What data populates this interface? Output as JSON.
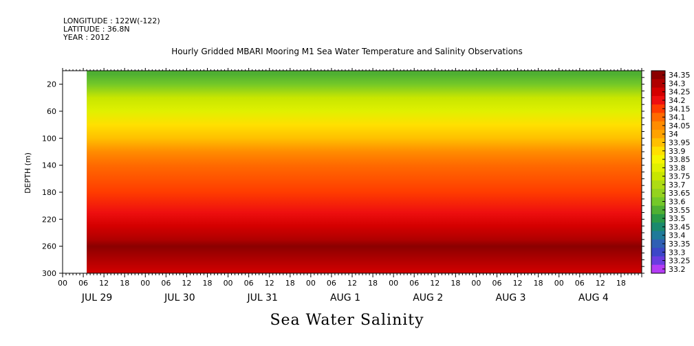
{
  "header": {
    "longitude": "LONGITUDE : 122W(-122)",
    "latitude": "LATITUDE : 36.8N",
    "year": "YEAR : 2012"
  },
  "chart_data": {
    "type": "heatmap",
    "title": "Hourly Gridded MBARI Mooring M1 Sea Water Temperature and Salinity Observations",
    "subtitle": "Sea Water Salinity",
    "ylabel": "DEPTH (m)",
    "xlabel": "",
    "y_axis": {
      "range": [
        0,
        300
      ],
      "inverted": true,
      "ticks": [
        20,
        60,
        100,
        140,
        180,
        220,
        260,
        300
      ],
      "tick_labels": [
        "20",
        "60",
        "100",
        "140",
        "180",
        "220",
        "260",
        "300"
      ]
    },
    "x_axis": {
      "range_hours": [
        0,
        168
      ],
      "hour_ticks": [
        "00",
        "06",
        "12",
        "18",
        "00",
        "06",
        "12",
        "18",
        "00",
        "06",
        "12",
        "18",
        "00",
        "06",
        "12",
        "18",
        "00",
        "06",
        "12",
        "18",
        "00",
        "06",
        "12",
        "18",
        "00",
        "06",
        "12",
        "18"
      ],
      "day_labels": [
        "JUL 29",
        "JUL 30",
        "JUL 31",
        "AUG  1",
        "AUG  2",
        "AUG  3",
        "AUG  4"
      ],
      "data_start_hour": 7,
      "data_end_hour": 168
    },
    "colorbar": {
      "levels": [
        34.35,
        34.3,
        34.25,
        34.2,
        34.15,
        34.1,
        34.05,
        34,
        33.95,
        33.9,
        33.85,
        33.8,
        33.75,
        33.7,
        33.65,
        33.6,
        33.55,
        33.5,
        33.45,
        33.4,
        33.35,
        33.3,
        33.25,
        33.2
      ],
      "labels": [
        "34.35",
        "34.3",
        "34.25",
        "34.2",
        "34.15",
        "34.1",
        "34.05",
        "34",
        "33.95",
        "33.9",
        "33.85",
        "33.8",
        "33.75",
        "33.7",
        "33.65",
        "33.6",
        "33.55",
        "33.5",
        "33.45",
        "33.4",
        "33.35",
        "33.3",
        "33.25",
        "33.2"
      ],
      "colors": [
        "#8b0000",
        "#b00000",
        "#d40000",
        "#ee0f0f",
        "#ff3c00",
        "#ff6a00",
        "#ff8c00",
        "#ffa200",
        "#ffc000",
        "#ffe000",
        "#f5f500",
        "#e0f000",
        "#c8e600",
        "#aedc14",
        "#94d21e",
        "#74c828",
        "#4fb032",
        "#2a9a46",
        "#1a8a6e",
        "#1f7a9a",
        "#2f5fb4",
        "#3c46c8",
        "#6a3ce0",
        "#b43cf5"
      ]
    },
    "profile": [
      {
        "depth": 5,
        "salinity": 33.5
      },
      {
        "depth": 20,
        "salinity": 33.55
      },
      {
        "depth": 40,
        "salinity": 33.7
      },
      {
        "depth": 60,
        "salinity": 33.75
      },
      {
        "depth": 80,
        "salinity": 33.85
      },
      {
        "depth": 100,
        "salinity": 33.92
      },
      {
        "depth": 120,
        "salinity": 34.0
      },
      {
        "depth": 140,
        "salinity": 34.07
      },
      {
        "depth": 180,
        "salinity": 34.12
      },
      {
        "depth": 210,
        "salinity": 34.17
      },
      {
        "depth": 230,
        "salinity": 34.22
      },
      {
        "depth": 250,
        "salinity": 34.28
      },
      {
        "depth": 260,
        "salinity": 34.31
      },
      {
        "depth": 280,
        "salinity": 34.26
      },
      {
        "depth": 300,
        "salinity": 34.2
      }
    ]
  },
  "footer": {
    "variable": "Sea Water Salinity"
  }
}
